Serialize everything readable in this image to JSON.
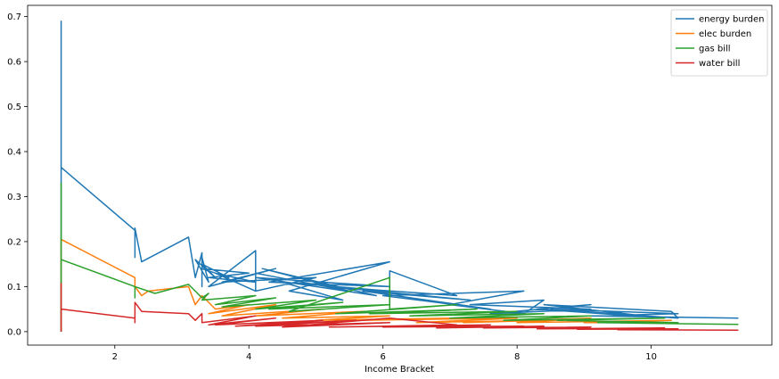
{
  "chart_data": {
    "type": "line",
    "title": "",
    "xlabel": "Income Bracket",
    "ylabel": "",
    "xlim": [
      0.7,
      11.8
    ],
    "ylim": [
      -0.03,
      0.725
    ],
    "xticks": [
      2,
      4,
      6,
      8,
      10
    ],
    "xtick_labels": [
      "2",
      "4",
      "6",
      "8",
      "10"
    ],
    "yticks": [
      0.0,
      0.1,
      0.2,
      0.3,
      0.4,
      0.5,
      0.6,
      0.7
    ],
    "ytick_labels": [
      "0.0",
      "0.1",
      "0.2",
      "0.3",
      "0.4",
      "0.5",
      "0.6",
      "0.7"
    ],
    "grid": false,
    "legend_position": "top-right",
    "series": [
      {
        "name": "energy burden",
        "color": "#1f77b4",
        "x": [
          1.2,
          1.2,
          1.2,
          1.2,
          2.3,
          2.3,
          2.3,
          2.4,
          3.1,
          3.2,
          3.3,
          3.3,
          3.3,
          3.4,
          3.2,
          3.5,
          3.3,
          3.7,
          3.3,
          4.0,
          3.4,
          4.1,
          3.5,
          4.1,
          4.1,
          3.4,
          4.4,
          3.6,
          5.0,
          4.1,
          4.1,
          5.5,
          4.2,
          5.9,
          4.1,
          6.1,
          4.3,
          6.1,
          4.6,
          5.4,
          4.5,
          6.1,
          6.1,
          6.1,
          7.1,
          5.2,
          7.3,
          5.7,
          7.6,
          6.0,
          8.1,
          7.0,
          8.1,
          8.4,
          7.3,
          9.1,
          7.6,
          9.1,
          8.3,
          10.2,
          8.4,
          10.3,
          10.4,
          8.5,
          10.4,
          9.1,
          11.3
        ],
        "y": [
          0.0,
          0.69,
          0.01,
          0.365,
          0.225,
          0.165,
          0.23,
          0.155,
          0.21,
          0.12,
          0.175,
          0.1,
          0.165,
          0.11,
          0.16,
          0.12,
          0.15,
          0.12,
          0.14,
          0.13,
          0.12,
          0.11,
          0.13,
          0.09,
          0.18,
          0.1,
          0.14,
          0.11,
          0.12,
          0.09,
          0.13,
          0.09,
          0.14,
          0.08,
          0.12,
          0.1,
          0.11,
          0.155,
          0.09,
          0.07,
          0.11,
          0.09,
          0.06,
          0.135,
          0.08,
          0.1,
          0.07,
          0.09,
          0.05,
          0.08,
          0.09,
          0.06,
          0.04,
          0.07,
          0.06,
          0.05,
          0.04,
          0.06,
          0.05,
          0.03,
          0.06,
          0.045,
          0.03,
          0.05,
          0.04,
          0.035,
          0.03
        ]
      },
      {
        "name": "elec burden",
        "color": "#ff7f0e",
        "x": [
          1.2,
          1.2,
          2.3,
          2.3,
          2.4,
          2.5,
          3.1,
          3.2,
          3.3,
          3.5,
          4.0,
          3.4,
          4.4,
          3.6,
          5.1,
          4.1,
          5.7,
          4.5,
          6.1,
          5.0,
          7.1,
          5.6,
          8.0,
          6.5,
          8.4,
          7.2,
          9.1,
          8.0,
          10.3,
          9.0,
          10.4
        ],
        "y": [
          0.0,
          0.205,
          0.12,
          0.1,
          0.08,
          0.09,
          0.1,
          0.06,
          0.08,
          0.05,
          0.06,
          0.04,
          0.06,
          0.035,
          0.05,
          0.035,
          0.045,
          0.03,
          0.035,
          0.025,
          0.03,
          0.025,
          0.03,
          0.02,
          0.025,
          0.02,
          0.03,
          0.02,
          0.025,
          0.02,
          0.02
        ]
      },
      {
        "name": "gas bill",
        "color": "#2ca02c",
        "x": [
          1.2,
          1.2,
          1.2,
          2.3,
          2.3,
          2.3,
          2.6,
          3.1,
          3.2,
          3.3,
          3.4,
          3.3,
          4.1,
          3.5,
          4.4,
          3.6,
          5.0,
          4.1,
          5.4,
          4.3,
          6.1,
          4.6,
          6.1,
          6.1,
          7.1,
          5.3,
          7.4,
          5.8,
          8.0,
          6.4,
          8.4,
          7.0,
          9.1,
          7.8,
          10.2,
          8.6,
          10.4,
          9.2,
          11.3
        ],
        "y": [
          0.0,
          0.33,
          0.16,
          0.1,
          0.075,
          0.1,
          0.085,
          0.105,
          0.09,
          0.075,
          0.085,
          0.07,
          0.08,
          0.06,
          0.075,
          0.055,
          0.07,
          0.05,
          0.065,
          0.05,
          0.06,
          0.045,
          0.12,
          0.05,
          0.06,
          0.04,
          0.05,
          0.04,
          0.045,
          0.035,
          0.04,
          0.03,
          0.035,
          0.025,
          0.03,
          0.025,
          0.02,
          0.02,
          0.016
        ]
      },
      {
        "name": "water bill",
        "color": "#d62728",
        "x": [
          1.2,
          1.2,
          1.2,
          2.3,
          2.3,
          2.3,
          2.4,
          3.1,
          3.2,
          3.3,
          3.3,
          4.1,
          3.4,
          4.4,
          3.5,
          5.1,
          3.8,
          5.6,
          4.1,
          6.1,
          4.5,
          6.1,
          7.1,
          5.2,
          7.6,
          6.0,
          8.1,
          6.8,
          8.4,
          7.5,
          9.1,
          8.3,
          10.2,
          8.9,
          10.4,
          9.5,
          11.3
        ],
        "y": [
          0.0,
          0.107,
          0.05,
          0.03,
          0.02,
          0.065,
          0.045,
          0.04,
          0.025,
          0.04,
          0.02,
          0.035,
          0.015,
          0.03,
          0.015,
          0.025,
          0.012,
          0.025,
          0.012,
          0.02,
          0.01,
          0.03,
          0.015,
          0.01,
          0.015,
          0.01,
          0.012,
          0.008,
          0.012,
          0.008,
          0.01,
          0.006,
          0.008,
          0.005,
          0.006,
          0.004,
          0.003
        ]
      }
    ]
  }
}
